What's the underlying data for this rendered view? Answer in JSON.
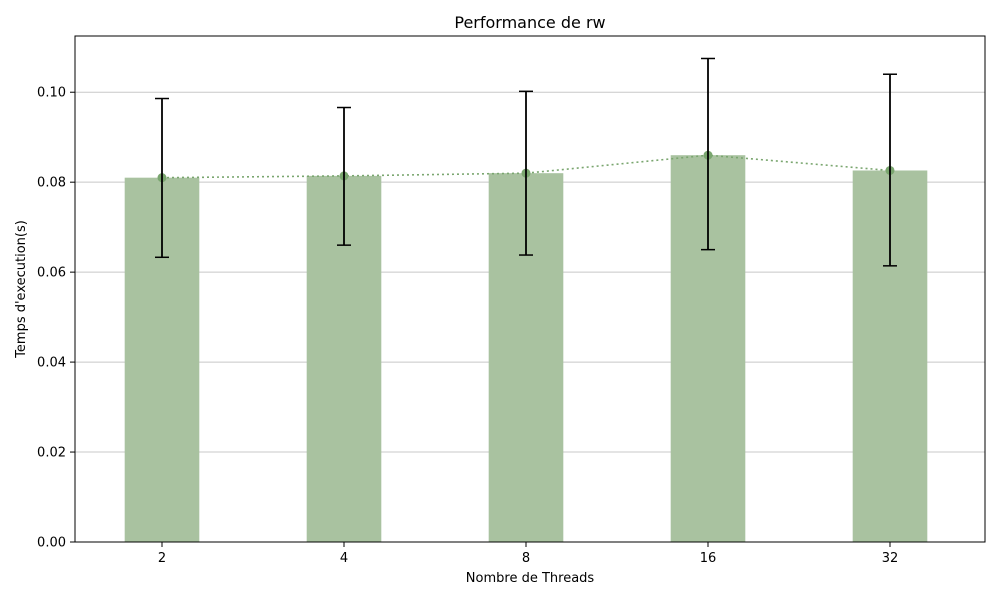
{
  "chart_data": {
    "type": "bar",
    "title": "Performance de rw",
    "xlabel": "Nombre de Threads",
    "ylabel": "Temps d'execution(s)",
    "categories": [
      "2",
      "4",
      "8",
      "16",
      "32"
    ],
    "values": [
      0.081,
      0.0814,
      0.082,
      0.086,
      0.0826
    ],
    "error_low": [
      0.0633,
      0.066,
      0.0638,
      0.065,
      0.0614
    ],
    "error_high": [
      0.0986,
      0.0966,
      0.1002,
      0.1075,
      0.104
    ],
    "line_overlay": true,
    "ylim": [
      0,
      0.1125
    ],
    "yticks": [
      "0.00",
      "0.02",
      "0.04",
      "0.06",
      "0.08",
      "0.10"
    ],
    "ytick_values": [
      0,
      0.02,
      0.04,
      0.06,
      0.08,
      0.1
    ],
    "grid": "horizontal",
    "colors": {
      "bar": "#a9c2a0",
      "line": "#7aa66f",
      "errorbar": "#000000",
      "grid": "#c8c8c8"
    }
  }
}
